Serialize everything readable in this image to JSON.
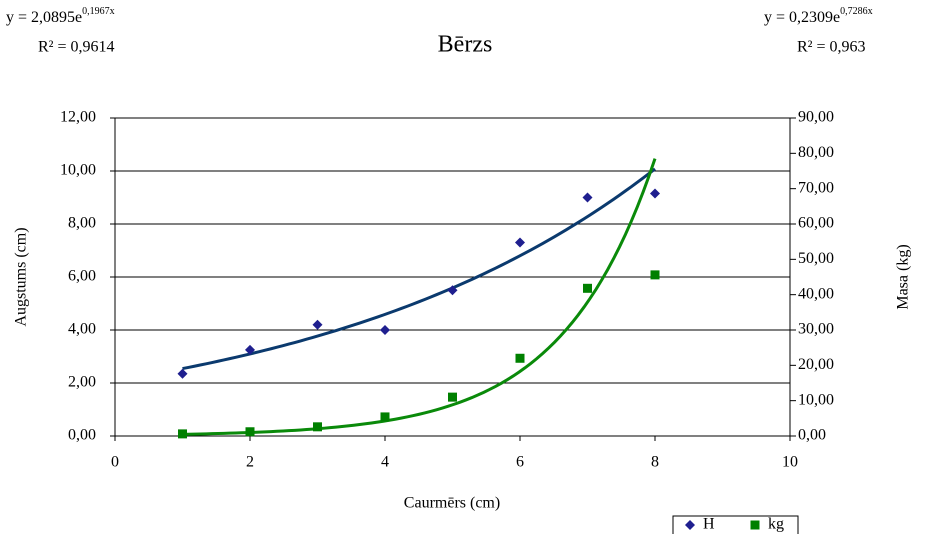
{
  "chart_data": {
    "type": "scatter",
    "title": "Bērzs",
    "x_label": "Caurmērs (cm)",
    "y_label": "Augstums (cm)",
    "y2_label": "Masa (kg)",
    "x": [
      1,
      2,
      3,
      4,
      5,
      6,
      7,
      8
    ],
    "series": [
      {
        "name": "H",
        "color": "#1f1f8f",
        "marker": "diamond",
        "values": [
          2.35,
          3.25,
          4.2,
          4.0,
          5.5,
          7.3,
          9.0,
          9.15
        ],
        "trendline": {
          "type": "exponential",
          "color": "#0b3a6e",
          "a": 2.0895,
          "b": 0.1967,
          "equation": "y = 2,0895e",
          "exponent": "0,1967x",
          "r2": "R² = 0,9614"
        }
      },
      {
        "name": "kg",
        "color": "#008000",
        "marker": "square",
        "axis": "y2",
        "values": [
          0.6,
          1.2,
          2.6,
          5.4,
          11,
          22,
          41.8,
          45.6
        ],
        "trendline": {
          "type": "exponential",
          "color": "#0a8a0a",
          "a": 0.2309,
          "b": 0.7286,
          "equation": "y = 0,2309e",
          "exponent": "0,7286x",
          "r2": "R² = 0,963"
        }
      }
    ],
    "xlim": [
      0,
      10
    ],
    "xticks": [
      0,
      2,
      4,
      6,
      8,
      10
    ],
    "ylim": [
      0,
      12
    ],
    "yticks": [
      {
        "value": 0,
        "label": "0,00"
      },
      {
        "value": 2,
        "label": "2,00"
      },
      {
        "value": 4,
        "label": "4,00"
      },
      {
        "value": 6,
        "label": "6,00"
      },
      {
        "value": 8,
        "label": "8,00"
      },
      {
        "value": 10,
        "label": "10,00"
      },
      {
        "value": 12,
        "label": "12,00"
      }
    ],
    "y2lim": [
      0,
      90
    ],
    "y2ticks": [
      {
        "value": 0,
        "label": "0,00"
      },
      {
        "value": 10,
        "label": "10,00"
      },
      {
        "value": 20,
        "label": "20,00"
      },
      {
        "value": 30,
        "label": "30,00"
      },
      {
        "value": 40,
        "label": "40,00"
      },
      {
        "value": 50,
        "label": "50,00"
      },
      {
        "value": 60,
        "label": "60,00"
      },
      {
        "value": 70,
        "label": "70,00"
      },
      {
        "value": 80,
        "label": "80,00"
      },
      {
        "value": 90,
        "label": "90,00"
      }
    ],
    "grid": true,
    "legend": "bottom-right"
  }
}
